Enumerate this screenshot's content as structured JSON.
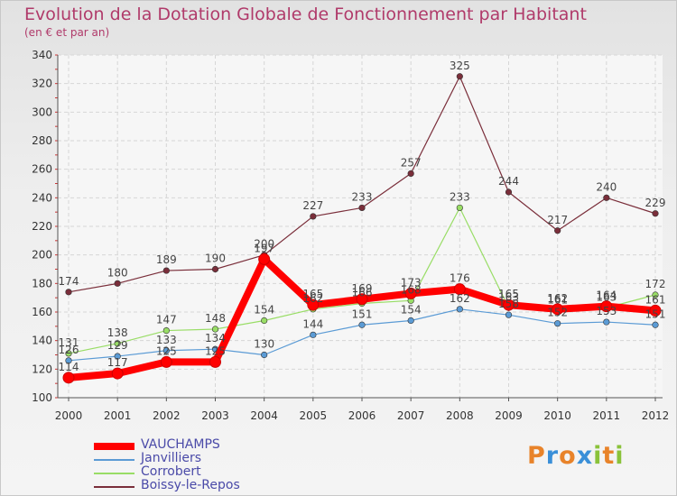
{
  "title": "Evolution de la Dotation Globale de Fonctionnement par Habitant",
  "subtitle": "(en € et par an)",
  "logo_text": "Proxiti",
  "chart_data": {
    "type": "line",
    "title": "Evolution de la Dotation Globale de Fonctionnement par Habitant",
    "subtitle": "(en € et par an)",
    "xlabel": "",
    "ylabel": "",
    "categories": [
      "2000",
      "2001",
      "2002",
      "2003",
      "2004",
      "2005",
      "2006",
      "2007",
      "2008",
      "2009",
      "2010",
      "2011",
      "2012"
    ],
    "ylim": [
      100,
      340
    ],
    "yticks": [
      100,
      120,
      140,
      160,
      180,
      200,
      220,
      240,
      260,
      280,
      300,
      320,
      340
    ],
    "grid": true,
    "legend_position": "bottom-left",
    "series": [
      {
        "name": "VAUCHAMPS",
        "color": "#ff0000",
        "values": [
          114,
          117,
          125,
          125,
          197,
          165,
          169,
          173,
          176,
          165,
          162,
          164,
          161
        ]
      },
      {
        "name": "Janvilliers",
        "color": "#5b9bd5",
        "values": [
          126,
          129,
          133,
          134,
          130,
          144,
          151,
          154,
          162,
          158,
          152,
          153,
          151
        ]
      },
      {
        "name": "Corrobert",
        "color": "#99dd66",
        "values": [
          131,
          138,
          147,
          148,
          154,
          162,
          166,
          168,
          233,
          163,
          161,
          163,
          172
        ]
      },
      {
        "name": "Boissy-le-Repos",
        "color": "#7a2e3a",
        "values": [
          174,
          180,
          189,
          190,
          200,
          227,
          233,
          257,
          325,
          244,
          217,
          240,
          229
        ]
      }
    ]
  }
}
